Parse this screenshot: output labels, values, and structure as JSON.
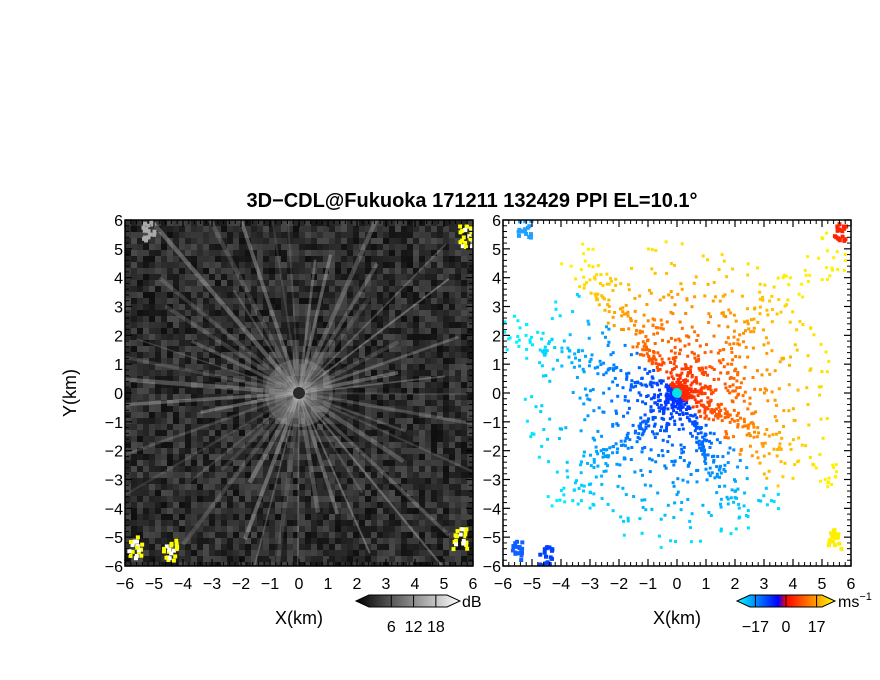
{
  "figure": {
    "title": "3D−CDL@Fukuoka 171211 132429 PPI EL=10.1°"
  },
  "chart_data": [
    {
      "type": "heatmap",
      "quantity": "reflectivity",
      "x_ticks": [
        "−6",
        "−5",
        "−4",
        "−3",
        "−2",
        "−1",
        "0",
        "1",
        "2",
        "3",
        "4",
        "5",
        "6"
      ],
      "y_ticks": [
        "6",
        "5",
        "4",
        "3",
        "2",
        "1",
        "0",
        "−1",
        "−2",
        "−3",
        "−4",
        "−5",
        "−6"
      ],
      "xlabel": "X(km)",
      "ylabel": "Y(km)",
      "xlim": [
        -6,
        6
      ],
      "ylim": [
        -6,
        6
      ],
      "colorbar": {
        "unit": "dB",
        "tick_labels": [
          "6",
          "12",
          "18"
        ],
        "ticks": [
          6,
          12,
          18
        ],
        "range": [
          0,
          21
        ]
      },
      "colormap": [
        "#000000",
        "#ffffff"
      ],
      "highlight_color": "#ffff00",
      "clutter_spots": [
        {
          "x": 5.7,
          "y": 5.5,
          "level": "high"
        },
        {
          "x": -5.7,
          "y": -5.3,
          "level": "high"
        },
        {
          "x": -4.5,
          "y": -5.4,
          "level": "high"
        },
        {
          "x": 5.5,
          "y": -5.0,
          "level": "high"
        },
        {
          "x": -5.2,
          "y": 5.7,
          "level": "low"
        }
      ]
    },
    {
      "type": "heatmap",
      "quantity": "radial velocity",
      "x_ticks": [
        "−6",
        "−5",
        "−4",
        "−3",
        "−2",
        "−1",
        "0",
        "1",
        "2",
        "3",
        "4",
        "5",
        "6"
      ],
      "y_ticks": [
        "6",
        "5",
        "4",
        "3",
        "2",
        "1",
        "0",
        "−1",
        "−2",
        "−3",
        "−4",
        "−5",
        "−6"
      ],
      "xlabel": "X(km)",
      "xlim": [
        -6,
        6
      ],
      "ylim": [
        -6,
        6
      ],
      "colorbar": {
        "unit": "ms",
        "unit_exponent": "−1",
        "tick_labels": [
          "−17",
          "0",
          "17"
        ],
        "ticks": [
          -17,
          0,
          17
        ],
        "range": [
          -20,
          20
        ]
      },
      "colormap": [
        "#00ffff",
        "#0000ff",
        "#ff0000",
        "#ffff00"
      ],
      "approach_direction": "southwest",
      "recede_direction": "northeast"
    }
  ]
}
